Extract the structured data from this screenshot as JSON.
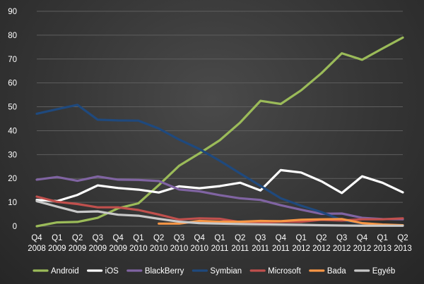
{
  "chart_data": {
    "type": "line",
    "title": "",
    "xlabel": "",
    "ylabel": "",
    "ylim": [
      0,
      90
    ],
    "yticks": [
      0,
      10,
      20,
      30,
      40,
      50,
      60,
      70,
      80,
      90
    ],
    "grid": true,
    "legend_position": "bottom",
    "categories": [
      {
        "q": "Q4",
        "y": "2008"
      },
      {
        "q": "Q1",
        "y": "2009"
      },
      {
        "q": "Q2",
        "y": "2009"
      },
      {
        "q": "Q3",
        "y": "2009"
      },
      {
        "q": "Q4",
        "y": "2009"
      },
      {
        "q": "Q1",
        "y": "2010"
      },
      {
        "q": "Q2",
        "y": "2010"
      },
      {
        "q": "Q3",
        "y": "2010"
      },
      {
        "q": "Q4",
        "y": "2010"
      },
      {
        "q": "Q1",
        "y": "2011"
      },
      {
        "q": "Q2",
        "y": "2011"
      },
      {
        "q": "Q3",
        "y": "2011"
      },
      {
        "q": "Q4",
        "y": "2011"
      },
      {
        "q": "Q1",
        "y": "2012"
      },
      {
        "q": "Q2",
        "y": "2012"
      },
      {
        "q": "Q3",
        "y": "2012"
      },
      {
        "q": "Q4",
        "y": "2012"
      },
      {
        "q": "Q1",
        "y": "2013"
      },
      {
        "q": "Q2",
        "y": "2013"
      }
    ],
    "series": [
      {
        "name": "Android",
        "color": "#9bbb59",
        "values": [
          0,
          1.6,
          1.8,
          3.5,
          7.5,
          9.6,
          17.2,
          25.3,
          30.5,
          36,
          43.4,
          52.5,
          51.2,
          56.9,
          64.1,
          72.4,
          69.7,
          74.4,
          79
        ]
      },
      {
        "name": "iOS",
        "color": "#ffffff",
        "values": [
          11,
          10.5,
          13.1,
          17.1,
          16,
          15.3,
          14.1,
          16.7,
          15.9,
          16.8,
          18.2,
          15,
          23.5,
          22.5,
          18.8,
          13.9,
          20.9,
          18.2,
          14.2
        ]
      },
      {
        "name": "BlackBerry",
        "color": "#8064a2",
        "values": [
          19.5,
          20.6,
          19,
          20.8,
          19.5,
          19.4,
          18.9,
          15.4,
          14.6,
          13,
          11.7,
          11,
          8.8,
          6.9,
          5.2,
          5.3,
          3.5,
          3,
          2.9
        ]
      },
      {
        "name": "Symbian",
        "color": "#1f497d",
        "values": [
          47.1,
          49,
          50.8,
          44.6,
          44.3,
          44.2,
          40.9,
          36.3,
          32.3,
          27.4,
          22.1,
          16.9,
          11.7,
          8.6,
          5.9,
          2.6,
          1.2,
          0.6,
          0.3
        ]
      },
      {
        "name": "Microsoft",
        "color": "#c0504d",
        "values": [
          12.4,
          10.2,
          9.3,
          7.9,
          7.9,
          6.8,
          4.9,
          2.8,
          3.3,
          3.1,
          1.7,
          1.5,
          1.9,
          1.9,
          2.7,
          2.4,
          2.9,
          2.9,
          3.3
        ]
      },
      {
        "name": "Bada",
        "color": "#f79646",
        "values": [
          null,
          null,
          null,
          null,
          null,
          null,
          1.1,
          1.1,
          2.2,
          1.9,
          1.9,
          2.2,
          2.1,
          2.7,
          2.9,
          3,
          1.3,
          0.7,
          0.4
        ]
      },
      {
        "name": "Egyéb",
        "color": "#c8c8c8",
        "values": [
          10.5,
          8.2,
          6,
          6.2,
          4.8,
          4.4,
          3.1,
          1.9,
          1.3,
          1.1,
          0.9,
          0.8,
          0.7,
          0.6,
          0.4,
          0.3,
          0.2,
          0.2,
          0.2
        ]
      }
    ]
  }
}
